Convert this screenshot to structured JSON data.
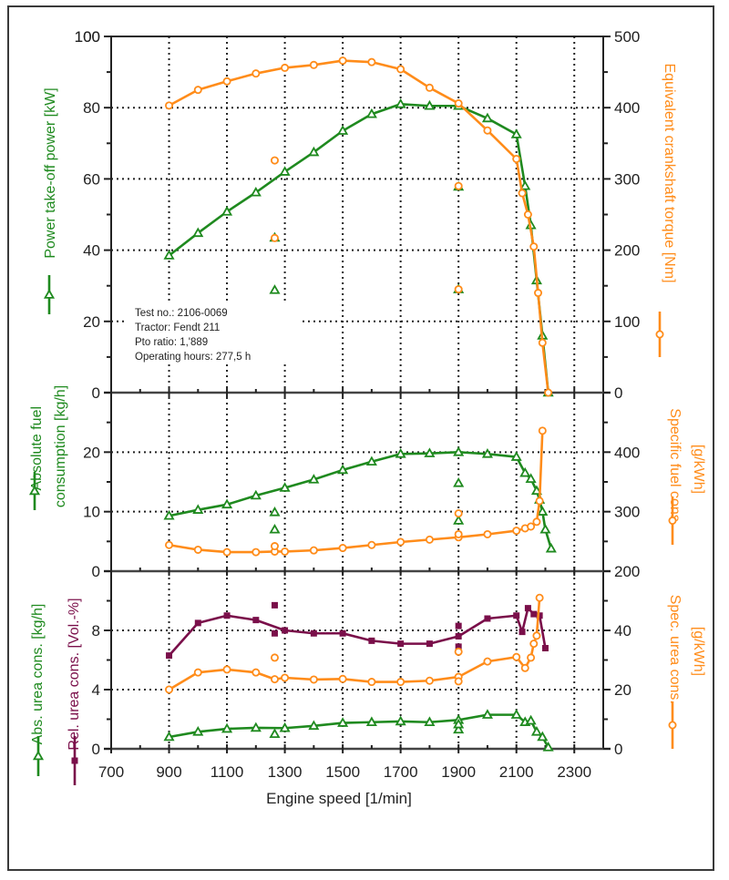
{
  "colors": {
    "green": "#1f8a1f",
    "orange": "#ff8c1a",
    "purple": "#7a0f4a",
    "grid": "#222222",
    "axis": "#222222"
  },
  "info_box": {
    "lines": [
      "Test no.: 2106-0069",
      "Tractor: Fendt 211",
      "Pto ratio: 1,'889",
      "Operating hours: 277,5 h"
    ]
  },
  "chart_data": {
    "type": "line",
    "x_axis": {
      "label": "Engine speed [1/min]",
      "range": [
        700,
        2400
      ],
      "ticks": [
        700,
        900,
        1100,
        1300,
        1500,
        1700,
        1900,
        2100,
        2300
      ],
      "tick_labels": [
        "700",
        "900",
        "1100",
        "1300",
        "1500",
        "1700",
        "1900",
        "2100",
        "2300"
      ]
    },
    "grid": true,
    "panels": [
      {
        "name": "power-torque",
        "left_axis": {
          "label": "Power take-off power [kW]",
          "color": "#1f8a1f",
          "range": [
            0,
            100
          ],
          "ticks": [
            0,
            20,
            40,
            60,
            80,
            100
          ],
          "tick_labels": [
            "0",
            "20",
            "40",
            "60",
            "80",
            "100"
          ]
        },
        "right_axis": {
          "label": "Equivalent crankshaft torque [Nm]",
          "color": "#ff8c1a",
          "range": [
            0,
            500
          ],
          "ticks": [
            0,
            100,
            200,
            300,
            400,
            500
          ],
          "tick_labels": [
            "0",
            "100",
            "200",
            "300",
            "400",
            "500"
          ]
        },
        "series": [
          {
            "name": "Power take-off power [kW]",
            "axis": "left",
            "color": "#1f8a1f",
            "marker": "triangle",
            "x": [
              900,
              1000,
              1100,
              1200,
              1300,
              1400,
              1500,
              1600,
              1700,
              1800,
              1900,
              2000,
              2100,
              2130,
              2150,
              2170,
              2190,
              2210
            ],
            "y": [
              38.5,
              44.8,
              50.8,
              56.2,
              62.0,
              67.5,
              73.5,
              78.2,
              81.0,
              80.5,
              80.5,
              77.0,
              72.5,
              58.0,
              47.0,
              31.5,
              16.0,
              0.0
            ],
            "extra_points": [
              {
                "x": 1265,
                "y": 28.8
              },
              {
                "x": 1265,
                "y": 43.5
              },
              {
                "x": 1900,
                "y": 29.0
              },
              {
                "x": 1900,
                "y": 57.8
              }
            ]
          },
          {
            "name": "Equivalent crankshaft torque [Nm]",
            "axis": "right",
            "color": "#ff8c1a",
            "marker": "circle",
            "x": [
              900,
              1000,
              1100,
              1200,
              1300,
              1400,
              1500,
              1600,
              1700,
              1800,
              1900,
              2000,
              2100,
              2120,
              2140,
              2160,
              2175,
              2190,
              2210
            ],
            "y": [
              403,
              425,
              437,
              448,
              456,
              460,
              466,
              464,
              454,
              428,
              406,
              368,
              328,
              280,
              250,
              205,
              140,
              70,
              0
            ],
            "extra_points": [
              {
                "x": 1265,
                "y": 326
              },
              {
                "x": 1265,
                "y": 217
              },
              {
                "x": 1900,
                "y": 290
              },
              {
                "x": 1900,
                "y": 145
              }
            ]
          }
        ]
      },
      {
        "name": "fuel",
        "left_axis": {
          "label": "Absolute fuel consumption [kg/h]",
          "color": "#1f8a1f",
          "range": [
            0,
            30
          ],
          "ticks": [
            0,
            10,
            20
          ],
          "tick_labels": [
            "0",
            "10",
            "20"
          ]
        },
        "right_axis": {
          "label": "Specific fuel cons. [g/kWh]",
          "color": "#ff8c1a",
          "range": [
            200,
            500
          ],
          "ticks": [
            200,
            300,
            400
          ],
          "tick_labels": [
            "200",
            "300",
            "400"
          ]
        },
        "series": [
          {
            "name": "Absolute fuel consumption [kg/h]",
            "axis": "left",
            "color": "#1f8a1f",
            "marker": "triangle",
            "x": [
              900,
              1000,
              1100,
              1200,
              1300,
              1400,
              1500,
              1600,
              1700,
              1800,
              1900,
              2000,
              2100,
              2130,
              2150,
              2170,
              2180,
              2190,
              2200,
              2220
            ],
            "y": [
              9.3,
              10.3,
              11.2,
              12.7,
              14.0,
              15.4,
              17.0,
              18.4,
              19.7,
              19.8,
              20.0,
              19.7,
              19.2,
              16.5,
              15.5,
              13.5,
              12.0,
              10.0,
              7.0,
              3.8
            ],
            "extra_points": [
              {
                "x": 1265,
                "y": 9.9
              },
              {
                "x": 1265,
                "y": 7.0
              },
              {
                "x": 1900,
                "y": 14.8
              },
              {
                "x": 1900,
                "y": 8.5
              }
            ]
          },
          {
            "name": "Specific fuel cons. [g/kWh]",
            "axis": "right",
            "color": "#ff8c1a",
            "marker": "circle",
            "x": [
              900,
              1000,
              1100,
              1200,
              1265,
              1300,
              1400,
              1500,
              1600,
              1700,
              1800,
              1900,
              2000,
              2100,
              2130,
              2150,
              2170,
              2180,
              2190
            ],
            "y": [
              244,
              236,
              232,
              232,
              233,
              233,
              235,
              239,
              244,
              249,
              253,
              257,
              262,
              268,
              272,
              275,
              283,
              318,
              436
            ],
            "extra_points": [
              {
                "x": 1265,
                "y": 242
              },
              {
                "x": 1900,
                "y": 297
              },
              {
                "x": 1900,
                "y": 262
              }
            ]
          }
        ]
      },
      {
        "name": "urea",
        "left_axis": {
          "label": "Abs. urea cons. [kg/h]",
          "label2": "Rel. urea cons. [Vol.-%]",
          "color": "#1f8a1f",
          "color2": "#7a0f4a",
          "range": [
            0,
            12
          ],
          "ticks": [
            0,
            4,
            8
          ],
          "tick_labels": [
            "0",
            "4",
            "8"
          ]
        },
        "right_axis": {
          "label": "Spec. urea cons. [g/kWh]",
          "color": "#ff8c1a",
          "range": [
            0,
            60
          ],
          "ticks": [
            0,
            20,
            40
          ],
          "tick_labels": [
            "0",
            "20",
            "40"
          ]
        },
        "series": [
          {
            "name": "Abs. urea cons. [kg/h]",
            "axis": "left",
            "color": "#1f8a1f",
            "marker": "triangle",
            "x": [
              900,
              1000,
              1100,
              1200,
              1300,
              1400,
              1500,
              1600,
              1700,
              1800,
              1900,
              2000,
              2100,
              2130,
              2150,
              2170,
              2190,
              2210
            ],
            "y": [
              0.8,
              1.15,
              1.35,
              1.42,
              1.4,
              1.55,
              1.75,
              1.8,
              1.85,
              1.8,
              1.95,
              2.3,
              2.3,
              1.8,
              1.9,
              1.15,
              0.8,
              0.1
            ],
            "extra_points": [
              {
                "x": 1265,
                "y": 1.0
              },
              {
                "x": 1900,
                "y": 1.3
              },
              {
                "x": 1900,
                "y": 1.65
              }
            ]
          },
          {
            "name": "Rel. urea cons. [Vol.-%]",
            "axis": "left",
            "color": "#7a0f4a",
            "marker": "square",
            "x": [
              900,
              1000,
              1100,
              1200,
              1300,
              1400,
              1500,
              1600,
              1700,
              1800,
              1900,
              2000,
              2100,
              2120,
              2140,
              2160,
              2180,
              2200
            ],
            "y": [
              6.3,
              8.5,
              9.0,
              8.7,
              8.0,
              7.8,
              7.8,
              7.3,
              7.1,
              7.1,
              7.6,
              8.8,
              9.0,
              7.9,
              9.5,
              9.1,
              9.0,
              6.8
            ],
            "extra_points": [
              {
                "x": 1265,
                "y": 9.7
              },
              {
                "x": 1265,
                "y": 7.8
              },
              {
                "x": 1900,
                "y": 8.3
              },
              {
                "x": 1900,
                "y": 6.9
              }
            ]
          },
          {
            "name": "Spec. urea cons. [g/kWh]",
            "axis": "right",
            "color": "#ff8c1a",
            "marker": "circle",
            "x": [
              900,
              1000,
              1100,
              1200,
              1265,
              1300,
              1400,
              1500,
              1600,
              1700,
              1800,
              1900,
              2000,
              2100,
              2130,
              2150,
              2160,
              2170,
              2180
            ],
            "y": [
              20,
              25.8,
              26.8,
              25.8,
              23.5,
              24,
              23.4,
              23.6,
              22.6,
              22.6,
              23.0,
              24.3,
              29.5,
              31,
              27.3,
              30.8,
              35.5,
              38.2,
              51
            ],
            "extra_points": [
              {
                "x": 1265,
                "y": 30.8
              },
              {
                "x": 1900,
                "y": 32.8
              },
              {
                "x": 1900,
                "y": 22.8
              }
            ]
          }
        ]
      }
    ]
  }
}
